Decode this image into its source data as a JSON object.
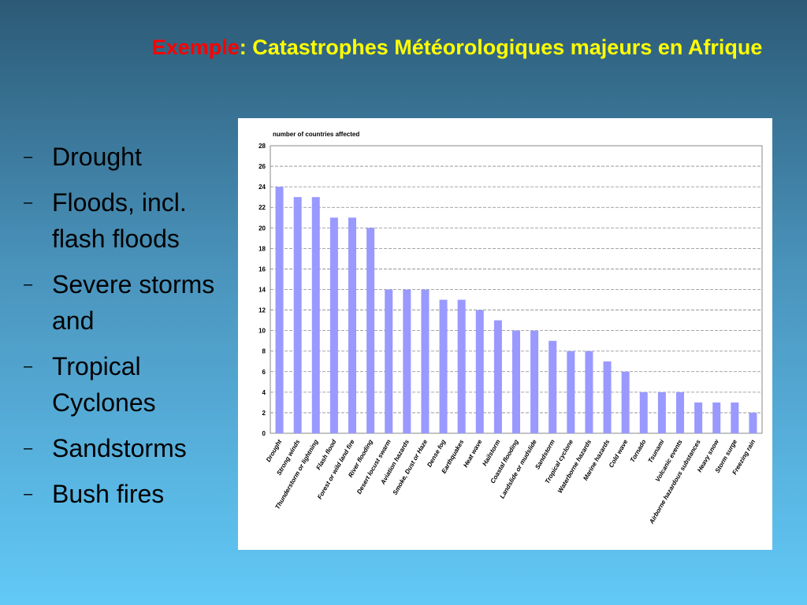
{
  "slide": {
    "title": [
      "Exemple",
      ": Catastrophes Météorologiques majeurs en Afrique"
    ],
    "bullets": [
      "Drought",
      "Floods, incl. flash floods",
      "Severe storms and",
      "Tropical Cyclones",
      "Sandstorms",
      "Bush fires"
    ]
  },
  "chart_data": {
    "type": "bar",
    "y_label": "number of countries affected",
    "categories": [
      "Drought",
      "Strong winds",
      "Thunderstorm or lightning",
      "Flash flood",
      "Forest or wild land fire",
      "River flooding",
      "Desert locust swarm",
      "Aviation hazards",
      "Smoke, Dust or Haze",
      "Dense fog",
      "Earthquakes",
      "Heat wave",
      "Hailstorm",
      "Coastal flooding",
      "Landslide or mudslide",
      "Sandstorm",
      "Tropical cyclone",
      "Waterborne hazards",
      "Marine hazards",
      "Cold wave",
      "Tornado",
      "Tsunami",
      "Volcanic events",
      "Airborne hazardous substances",
      "Heavy snow",
      "Storm surge",
      "Freezing rain"
    ],
    "values": [
      24,
      23,
      23,
      21,
      21,
      20,
      14,
      14,
      14,
      13,
      13,
      12,
      11,
      10,
      10,
      9,
      8,
      8,
      7,
      6,
      4,
      4,
      4,
      3,
      3,
      3,
      2
    ],
    "color": "#9999ff",
    "ylim": [
      0,
      28
    ],
    "yticks": [
      0,
      2,
      4,
      6,
      8,
      10,
      12,
      14,
      16,
      18,
      20,
      22,
      24,
      26,
      28
    ],
    "grid": true
  }
}
